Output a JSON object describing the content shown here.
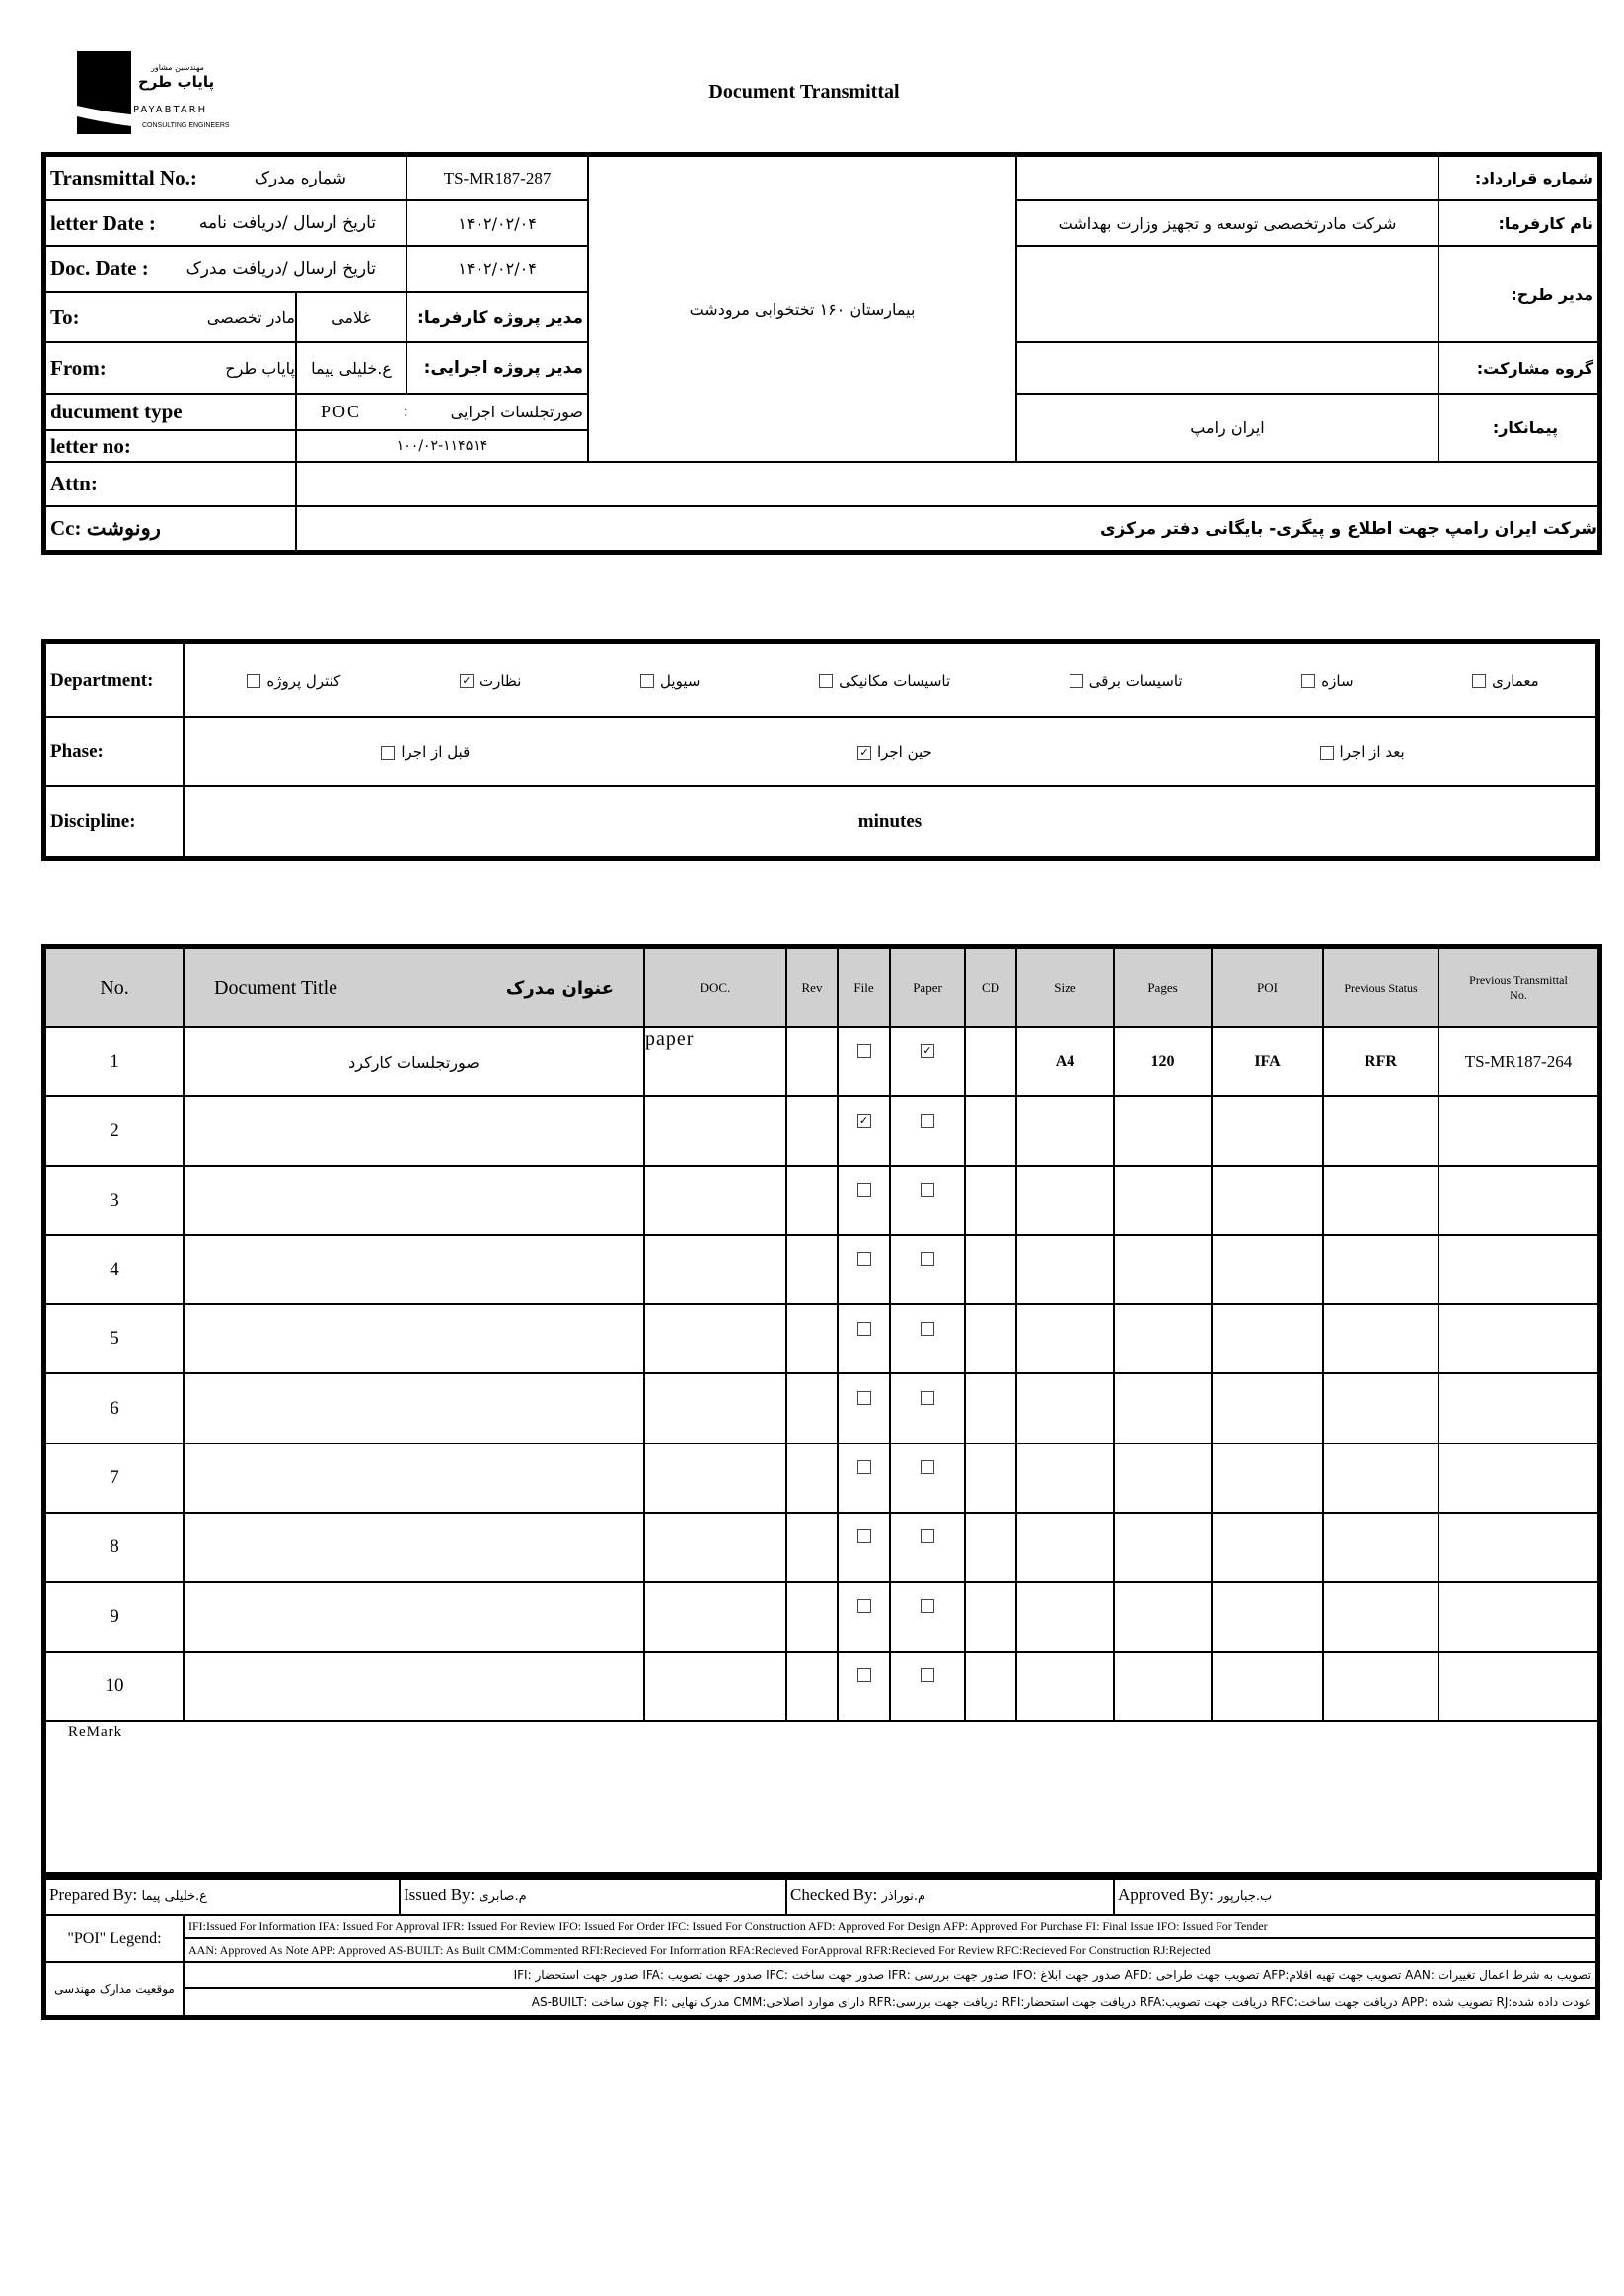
{
  "logo": {
    "fa_small": "مهندسین مشاور",
    "fa_name": "پایاب طرح",
    "en_name": "PAYABTARH",
    "en_sub": "CONSULTING ENGINEERS"
  },
  "title": "Document Transmittal",
  "header": {
    "transmittal_label": "Transmittal No.:",
    "transmittal_label_fa": "شماره مدرک",
    "transmittal_no": "TS-MR187-287",
    "letter_date_label": "letter Date  :",
    "letter_date_label_fa": "تاریخ ارسال /دریافت نامه",
    "letter_date": "۱۴۰۲/۰۲/۰۴",
    "doc_date_label": "Doc. Date :",
    "doc_date_label_fa": "تاریخ ارسال /دریافت مدرک",
    "doc_date": "۱۴۰۲/۰۲/۰۴",
    "to_label": "To:",
    "to_value": "مادر تخصصی",
    "to_person": "غلامی",
    "to_role": "مدیر پروژه کارفرما:",
    "from_label": "From:",
    "from_value": "پایاب طرح",
    "from_person": "ع.خلیلی پیما",
    "from_role": "مدیر پروژه اجرایی:",
    "doctype_label": "ducument type",
    "doctype_code": "POC",
    "doctype_sep": ":",
    "doctype_value": "صورتجلسات اجرایی",
    "letter_no_label": "letter no:",
    "letter_no": "۱۰۰/۰۲-۱۱۴۵۱۴",
    "project": "بیمارستان ۱۶۰ تختخوابی مرودشت",
    "contract_no_label": "شماره قرارداد:",
    "contract_no": "",
    "client_label": "نام کارفرما:",
    "client": "شرکت مادرتخصصی توسعه و تجهیز وزارت بهداشت",
    "pm_label": "مدیر طرح:",
    "pm": "",
    "partner_label": "گروه مشارکت:",
    "partner": "",
    "contractor_label": "پیمانکار:",
    "contractor": "ایران رامپ",
    "attn_label": "Attn:",
    "attn": "",
    "cc_label": "Cc: رونوشت",
    "cc": "شرکت ایران رامپ جهت اطلاع و پیگری- بایگانی دفتر مرکزی"
  },
  "classification": {
    "department_label": "Department:",
    "departments": [
      {
        "label": "معماری",
        "checked": false
      },
      {
        "label": "سازه",
        "checked": false
      },
      {
        "label": "تاسیسات برقی",
        "checked": false
      },
      {
        "label": "تاسیسات مکانیکی",
        "checked": false
      },
      {
        "label": "سیویل",
        "checked": false
      },
      {
        "label": "نظارت",
        "checked": true
      },
      {
        "label": "کنترل پروژه",
        "checked": false
      }
    ],
    "phase_label": "Phase:",
    "phases": [
      {
        "label": "بعد از اجرا",
        "checked": false
      },
      {
        "label": "حین اجرا",
        "checked": true
      },
      {
        "label": "قبل از اجرا",
        "checked": false
      }
    ],
    "discipline_label": "Discipline:",
    "discipline": "minutes"
  },
  "documents": {
    "columns": {
      "no": "No.",
      "title": "Document Title",
      "title_fa": "عنوان مدرک",
      "doc": "DOC.",
      "rev": "Rev",
      "file": "File",
      "paper": "Paper",
      "cd": "CD",
      "size": "Size",
      "pages": "Pages",
      "poi": "POI",
      "prev_status": "Previous Status",
      "prev_transmittal": "Previous Transmittal No."
    },
    "rows": [
      {
        "no": "1",
        "title": "صورتجلسات کارکرد",
        "doc": "paper",
        "rev": "",
        "file": false,
        "paper": true,
        "cd": "",
        "size": "A4",
        "pages": "120",
        "poi": "IFA",
        "prev_status": "RFR",
        "prev_transmittal": "TS-MR187-264"
      },
      {
        "no": "2",
        "title": "",
        "doc": "",
        "rev": "",
        "file": true,
        "paper": false,
        "cd": "",
        "size": "",
        "pages": "",
        "poi": "",
        "prev_status": "",
        "prev_transmittal": ""
      },
      {
        "no": "3",
        "file": false,
        "paper": false
      },
      {
        "no": "4",
        "file": false,
        "paper": false
      },
      {
        "no": "5",
        "file": false,
        "paper": false
      },
      {
        "no": "6",
        "file": false,
        "paper": false
      },
      {
        "no": "7",
        "file": false,
        "paper": false
      },
      {
        "no": "8",
        "file": false,
        "paper": false
      },
      {
        "no": "9",
        "file": false,
        "paper": false
      },
      {
        "no": "10",
        "file": false,
        "paper": false
      }
    ],
    "remark_label": "ReMark"
  },
  "signatures": {
    "prepared_label": "Prepared By:",
    "prepared": "ع.خلیلی پیما",
    "issued_label": "Issued By:",
    "issued": "م.صابری",
    "checked_label": "Checked By:",
    "checked": "م.نورآذر",
    "approved_label": "Approved By:",
    "approved": "ب.جبارپور"
  },
  "legend": {
    "poi_label": "\"POI\" Legend:",
    "poi_line1": "IFI:Issued For Information  IFA: Issued For Approval  IFR: Issued For Review   IFO: Issued For Order  IFC: Issued For Construction AFD: Approved For Design AFP: Approved For Purchase  FI: Final Issue  IFO: Issued For Tender",
    "poi_line2": "AAN: Approved As Note  APP: Approved  AS-BUILT: As Built CMM:Commented  RFI:Recieved For Information   RFA:Recieved ForApproval   RFR:Recieved For Review  RFC:Recieved For Construction  RJ:Rejected",
    "status_label": "موقعیت مدارک مهندسی",
    "status_line1": "تصویب به شرط اعمال تغییرات :AAN    تصویب جهت تهیه اقلام:AFP    تصویب جهت طراحی :AFD    صدور جهت ابلاغ :IFO    صدور جهت بررسی :IFR    صدور جهت ساخت :IFC    صدور جهت تصویب :IFA    صدور جهت استحضار :IFI",
    "status_line2": "عودت داده شده:RJ    تصویب شده :APP    دریافت جهت ساخت:RFC    دریافت جهت تصویب:RFA    دریافت جهت استحضار:RFI    دریافت جهت بررسی:RFR    دارای موارد اصلاحی:CMM    مدرک نهایی :FI    چون ساخت :AS-BUILT"
  }
}
